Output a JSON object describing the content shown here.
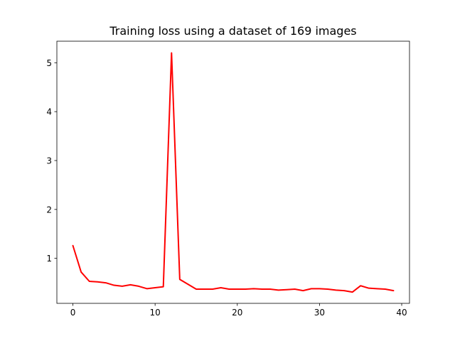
{
  "chart_data": {
    "type": "line",
    "title": "Training loss using a dataset of 169 images",
    "xlabel": "",
    "ylabel": "",
    "xlim": [
      -1.95,
      40.95
    ],
    "ylim": [
      0.08,
      5.44
    ],
    "xticks": [
      0,
      10,
      20,
      30,
      40
    ],
    "yticks": [
      1,
      2,
      3,
      4,
      5
    ],
    "grid": false,
    "series": [
      {
        "color": "#ff0000",
        "x": [
          0,
          1,
          2,
          3,
          4,
          5,
          6,
          7,
          8,
          9,
          10,
          11,
          12,
          13,
          14,
          15,
          16,
          17,
          18,
          19,
          20,
          21,
          22,
          23,
          24,
          25,
          26,
          27,
          28,
          29,
          30,
          31,
          32,
          33,
          34,
          35,
          36,
          37,
          38,
          39
        ],
        "y": [
          1.26,
          0.72,
          0.53,
          0.52,
          0.5,
          0.45,
          0.43,
          0.46,
          0.43,
          0.38,
          0.4,
          0.42,
          5.2,
          0.57,
          0.47,
          0.37,
          0.37,
          0.37,
          0.4,
          0.37,
          0.37,
          0.37,
          0.38,
          0.37,
          0.37,
          0.35,
          0.36,
          0.37,
          0.34,
          0.38,
          0.38,
          0.37,
          0.35,
          0.34,
          0.31,
          0.44,
          0.39,
          0.38,
          0.37,
          0.34
        ]
      }
    ]
  }
}
